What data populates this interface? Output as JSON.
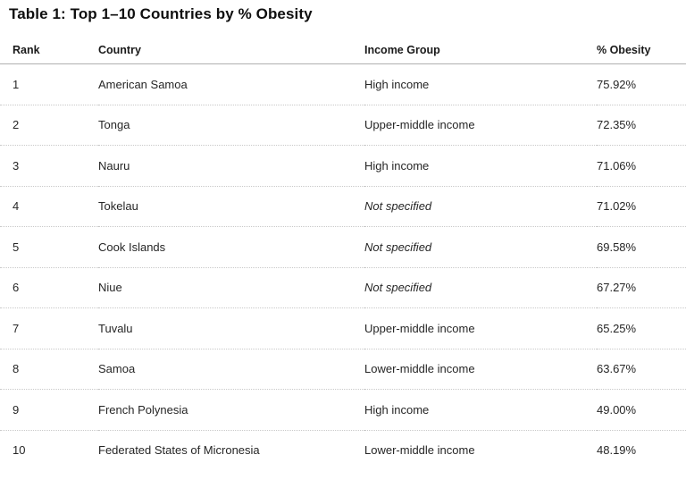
{
  "document": {
    "title": "Table 1: Top 1–10 Countries by % Obesity"
  },
  "table": {
    "columns": [
      "Rank",
      "Country",
      "Income Group",
      "% Obesity"
    ],
    "rows": [
      {
        "rank": "1",
        "country": "American Samoa",
        "income_group": "High income",
        "income_italic": false,
        "obesity": "75.92%"
      },
      {
        "rank": "2",
        "country": "Tonga",
        "income_group": "Upper-middle income",
        "income_italic": false,
        "obesity": "72.35%"
      },
      {
        "rank": "3",
        "country": "Nauru",
        "income_group": "High income",
        "income_italic": false,
        "obesity": "71.06%"
      },
      {
        "rank": "4",
        "country": "Tokelau",
        "income_group": "Not specified",
        "income_italic": true,
        "obesity": "71.02%"
      },
      {
        "rank": "5",
        "country": "Cook Islands",
        "income_group": "Not specified",
        "income_italic": true,
        "obesity": "69.58%"
      },
      {
        "rank": "6",
        "country": "Niue",
        "income_group": "Not specified",
        "income_italic": true,
        "obesity": "67.27%"
      },
      {
        "rank": "7",
        "country": "Tuvalu",
        "income_group": "Upper-middle income",
        "income_italic": false,
        "obesity": "65.25%"
      },
      {
        "rank": "8",
        "country": "Samoa",
        "income_group": "Lower-middle income",
        "income_italic": false,
        "obesity": "63.67%"
      },
      {
        "rank": "9",
        "country": "French Polynesia",
        "income_group": "High income",
        "income_italic": false,
        "obesity": "49.00%"
      },
      {
        "rank": "10",
        "country": "Federated States of Micronesia",
        "income_group": "Lower-middle income",
        "income_italic": false,
        "obesity": "48.19%"
      }
    ]
  },
  "colors": {
    "background": "#ffffff",
    "title_text": "#0f0f0f",
    "header_text": "#1a1a1a",
    "body_text": "#262626",
    "header_border": "#b0b0b0",
    "row_border": "#c9c9c9"
  }
}
